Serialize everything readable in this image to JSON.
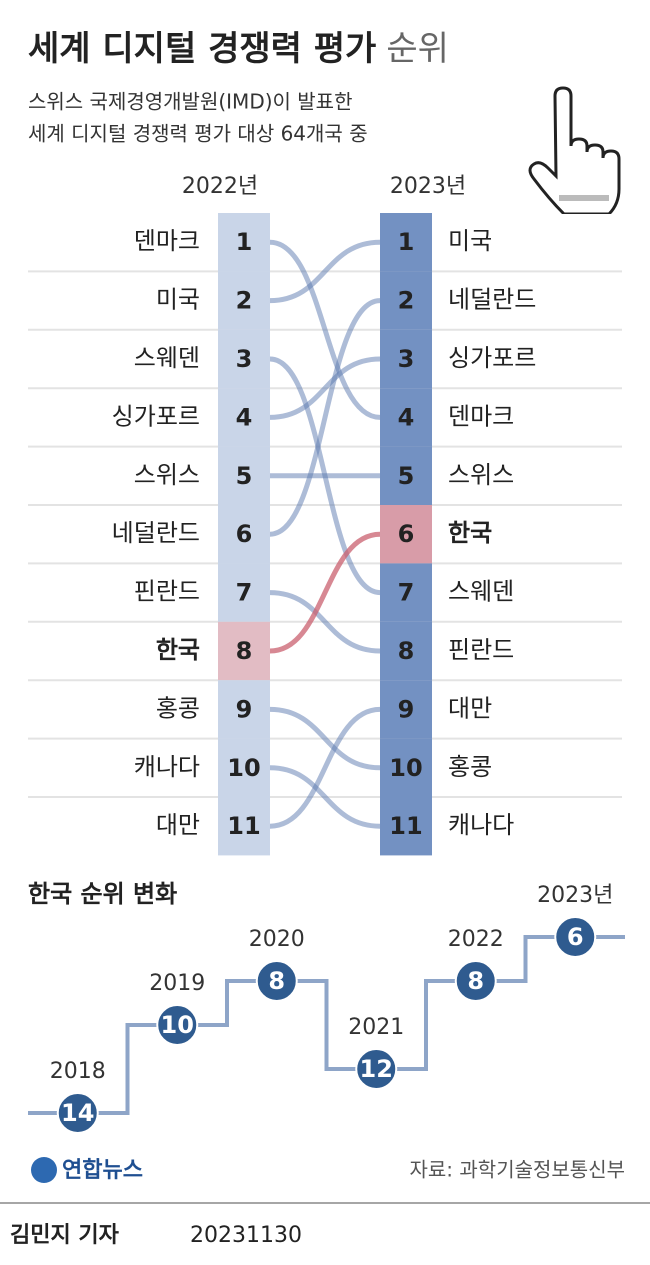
{
  "header": {
    "title": "세계 디지털 경쟁력 평가",
    "title_suffix": "순위",
    "subtitle": [
      "스위스 국제경영개발원(IMD)이 발표한",
      "세계 디지털 경쟁력 평가 대상 64개국 중"
    ]
  },
  "chart_data": [
    {
      "type": "bump",
      "columns": [
        "2022년",
        "2023년"
      ],
      "left": {
        "countries": [
          "덴마크",
          "미국",
          "스웨덴",
          "싱가포르",
          "스위스",
          "네덜란드",
          "핀란드",
          "한국",
          "홍콩",
          "캐나다",
          "대만"
        ],
        "ranks": [
          1,
          2,
          3,
          4,
          5,
          6,
          7,
          8,
          9,
          10,
          11
        ],
        "color": "#c9d5e8"
      },
      "right": {
        "countries": [
          "미국",
          "네덜란드",
          "싱가포르",
          "덴마크",
          "스위스",
          "한국",
          "스웨덴",
          "핀란드",
          "대만",
          "홍콩",
          "캐나다"
        ],
        "ranks": [
          1,
          2,
          3,
          4,
          5,
          6,
          7,
          8,
          9,
          10,
          11
        ],
        "color": "#7391c2"
      },
      "highlight": "한국",
      "highlight_colors": [
        "#e2bcc4",
        "#d89ca8"
      ],
      "line_color": "#5b79b0",
      "highlight_line_color": "#c9606f"
    },
    {
      "type": "step",
      "title": "한국 순위 변화",
      "x": [
        "2018",
        "2019",
        "2020",
        "2021",
        "2022",
        "2023년"
      ],
      "values": [
        14,
        10,
        8,
        12,
        8,
        6
      ],
      "ylim": [
        15,
        5
      ],
      "color": "#2f5b8f",
      "line_color": "#8ea5c8"
    }
  ],
  "footer": {
    "logo": "연합뉴스",
    "source": "자료: 과학기술정보통신부",
    "reporter": "김민지 기자",
    "date": "20231130"
  }
}
